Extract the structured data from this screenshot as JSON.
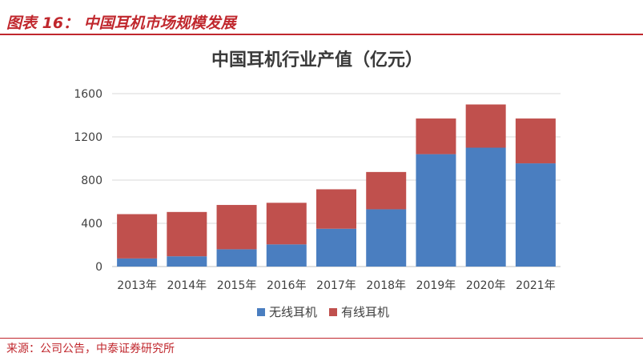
{
  "figure": {
    "title": "图表 16：  中国耳机市场规模发展",
    "source": "来源：公司公告，中泰证券研究所"
  },
  "colors": {
    "accent": "#c0272d",
    "wireless": "#4a7ec0",
    "wired": "#c0504d"
  },
  "chart_data": {
    "type": "bar",
    "stacked": true,
    "title": "中国耳机行业产值（亿元）",
    "xlabel": "",
    "ylabel": "",
    "categories": [
      "2013年",
      "2014年",
      "2015年",
      "2016年",
      "2017年",
      "2018年",
      "2019年",
      "2020年",
      "2021年"
    ],
    "series": [
      {
        "name": "无线耳机",
        "color": "#4a7ec0",
        "values": [
          75,
          95,
          160,
          205,
          350,
          530,
          1040,
          1100,
          955
        ]
      },
      {
        "name": "有线耳机",
        "color": "#c0504d",
        "values": [
          410,
          410,
          410,
          385,
          365,
          345,
          330,
          400,
          415
        ]
      }
    ],
    "ylim": [
      0,
      1600
    ],
    "yticks": [
      0,
      400,
      800,
      1200,
      1600
    ],
    "grid": true,
    "legend": "bottom"
  }
}
